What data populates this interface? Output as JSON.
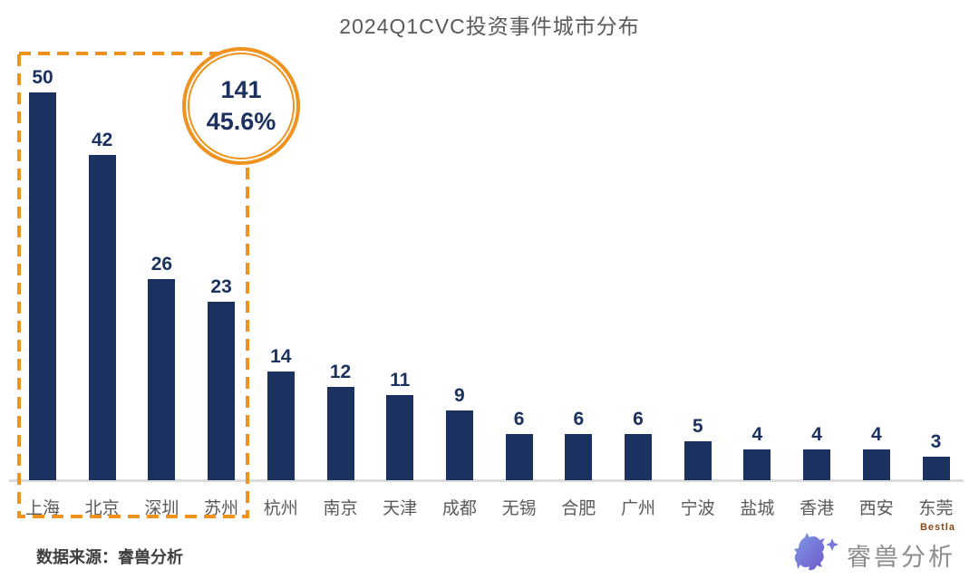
{
  "chart_data": {
    "type": "bar",
    "title": "2024Q1CVC投资事件城市分布",
    "categories": [
      "上海",
      "北京",
      "深圳",
      "苏州",
      "杭州",
      "南京",
      "天津",
      "成都",
      "无锡",
      "合肥",
      "广州",
      "宁波",
      "盐城",
      "香港",
      "西安",
      "东莞"
    ],
    "values": [
      50,
      42,
      26,
      23,
      14,
      12,
      11,
      9,
      6,
      6,
      6,
      5,
      4,
      4,
      4,
      3
    ],
    "xlabel": "",
    "ylabel": "",
    "ylim": [
      0,
      50
    ],
    "grid": false,
    "value_labels": true,
    "legend": "none",
    "highlight": {
      "categories": [
        "上海",
        "北京",
        "深圳",
        "苏州"
      ],
      "style": "orange-dashed-box"
    }
  },
  "annotation": {
    "total": "141",
    "share": "45.6%"
  },
  "source": {
    "text": "数据来源：睿兽分析"
  },
  "logo": {
    "brand": "睿兽分析",
    "sub": "Bestla"
  },
  "colors": {
    "bar": "#1b3160",
    "value_label": "#1b3160",
    "axis_text": "#595959",
    "title_text": "#595959",
    "accent_orange": "#f0921e",
    "axis_line": "#dcdcdc",
    "badge_text": "#1b3160",
    "logo_purple_1": "#7f9ae8",
    "logo_purple_2": "#6f58c9"
  }
}
